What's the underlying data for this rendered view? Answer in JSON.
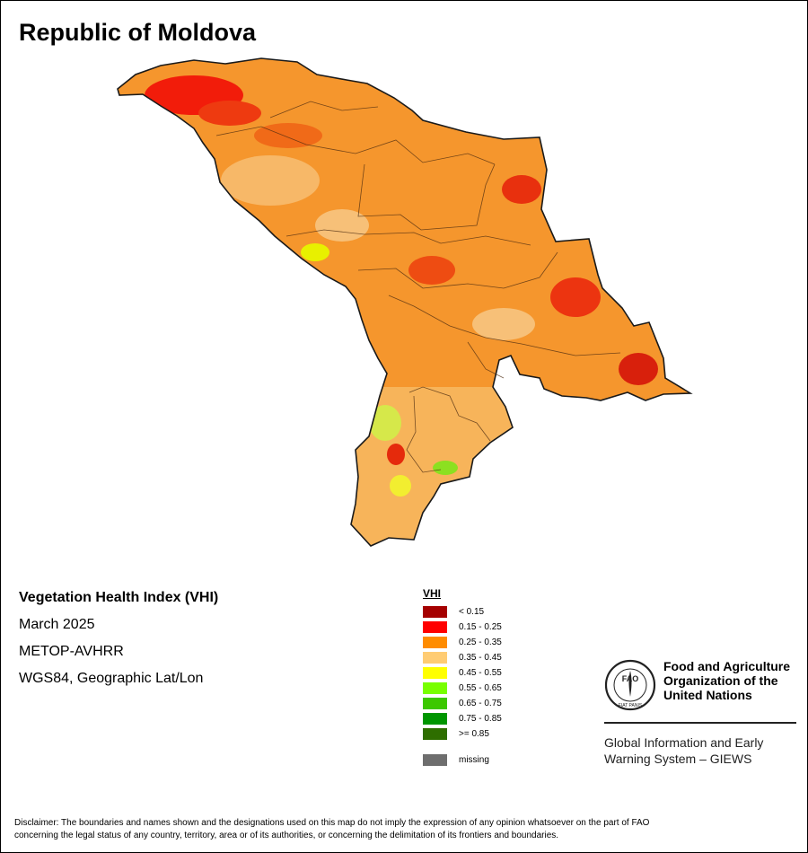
{
  "title": "Republic of Moldova",
  "info": {
    "index_name": "Vegetation Health Index (VHI)",
    "period": "March 2025",
    "sensor": "METOP-AVHRR",
    "projection": "WGS84, Geographic Lat/Lon"
  },
  "legend": {
    "title": "VHI",
    "classes": [
      {
        "label": "< 0.15",
        "color": "#a50000"
      },
      {
        "label": "0.15 - 0.25",
        "color": "#ff0000"
      },
      {
        "label": "0.25 - 0.35",
        "color": "#ff8c00"
      },
      {
        "label": "0.35 - 0.45",
        "color": "#ffcc73"
      },
      {
        "label": "0.45 - 0.55",
        "color": "#ffff00"
      },
      {
        "label": "0.55 - 0.65",
        "color": "#78ff00"
      },
      {
        "label": "0.65 - 0.75",
        "color": "#3cc800"
      },
      {
        "label": "0.75 - 0.85",
        "color": "#009600"
      },
      {
        "label": ">= 0.85",
        "color": "#2e6e00"
      }
    ],
    "missing": {
      "label": "missing",
      "color": "#6e6e6e"
    }
  },
  "organization": {
    "name_line1": "Food and Agriculture",
    "name_line2": "Organization of the",
    "name_line3": "United Nations",
    "logo_text": "FAO",
    "logo_motto": "FIAT PANIS",
    "program_line1": "Global Information and Early",
    "program_line2": "Warning System – GIEWS"
  },
  "disclaimer": {
    "line1": "Disclaimer: The boundaries and names shown and the designations used on this map do not imply the expression of any opinion whatsoever on the part of FAO",
    "line2": "concerning the legal status of any country, territory, area or of its authorities, or concerning the delimitation of its frontiers and boundaries."
  }
}
